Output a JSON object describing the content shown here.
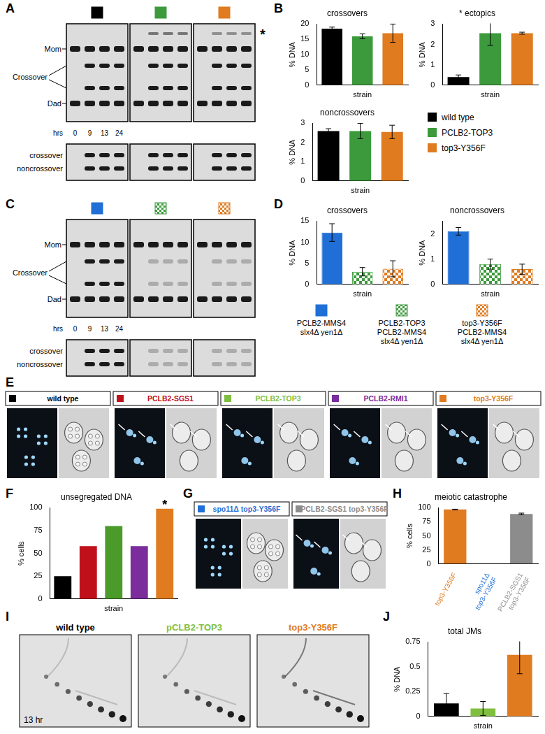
{
  "panel_letters": [
    "A",
    "B",
    "C",
    "D",
    "E",
    "F",
    "G",
    "H",
    "I",
    "J"
  ],
  "gels": {
    "A": {
      "squares": [
        "#000000",
        "#3c9a3c",
        "#e07b20"
      ],
      "labels": [
        "Mom",
        "Crossover",
        "Dad"
      ],
      "hours_label": "hrs",
      "hours": [
        0,
        9,
        13,
        24
      ],
      "lower": [
        "crossover",
        "noncrossover"
      ],
      "mark": "*"
    },
    "C": {
      "squares": [
        "#1f6fd6",
        "#3c9a3c",
        "#e07b20"
      ],
      "labels": [
        "Mom",
        "Crossover",
        "Dad"
      ],
      "hours_label": "hrs",
      "hours": [
        0,
        9,
        13,
        24
      ],
      "lower": [
        "crossover",
        "noncrossover"
      ]
    }
  },
  "legends": {
    "B": [
      {
        "name": [
          "wild type"
        ],
        "color": "#000000"
      },
      {
        "name": [
          "PCLB2-TOP3"
        ],
        "color": "#3c9a3c"
      },
      {
        "name": [
          "top3-Y356F"
        ],
        "color": "#e07b20"
      }
    ],
    "D": [
      {
        "name": [
          "PCLB2-MMS4",
          "slx4Δ yen1Δ"
        ],
        "color": "#1f6fd6"
      },
      {
        "name": [
          "PCLB2-TOP3",
          "PCLB2-MMS4",
          "slx4Δ yen1Δ"
        ],
        "color": "#3c9a3c"
      },
      {
        "name": [
          "top3-Y356F",
          "PCLB2-MMS4",
          "slx4Δ yen1Δ"
        ],
        "color": "#e07b20"
      }
    ]
  },
  "micrographs": {
    "E": [
      {
        "name": "wild type",
        "color": "#000000"
      },
      {
        "name": "PCLB2-SGS1",
        "color": "#c0111b"
      },
      {
        "name": "PCLB2-TOP3",
        "color": "#7fbf3f"
      },
      {
        "name": "PCLB2-RMI1",
        "color": "#7b2d9b"
      },
      {
        "name": "top3-Y356F",
        "color": "#e07b20"
      }
    ],
    "G": [
      {
        "name": "spo11Δ top3-Y356F",
        "color": "#1f6fd6"
      },
      {
        "name": "PCLB2-SGS1 top3-Y356F",
        "color": "#8c8c8c"
      }
    ]
  },
  "jm_gels": {
    "panels": [
      {
        "name": "wild type",
        "color": "#000000"
      },
      {
        "name": "pCLB2-TOP3",
        "color": "#7fbf3f"
      },
      {
        "name": "top3-Y356F",
        "color": "#e07b20"
      }
    ],
    "time": "13 hr"
  },
  "chart_data": [
    {
      "type": "bar",
      "title": "crossovers",
      "x_label": "strain",
      "y_label": "% DNA",
      "categories": [
        null,
        null,
        null
      ],
      "values": [
        18.5,
        16,
        17
      ],
      "errors": [
        0.5,
        0.8,
        3
      ],
      "colors": [
        "#000000",
        "#3c9a3c",
        "#e07b20"
      ],
      "ylim": [
        0,
        20
      ],
      "yticks": [
        0,
        5,
        10,
        15,
        20
      ],
      "grid": false,
      "tick_labels": "y"
    },
    {
      "type": "bar",
      "title": "* ectopics",
      "x_label": "strain",
      "y_label": "% DNA",
      "categories": [
        null,
        null,
        null
      ],
      "values": [
        0.4,
        2.55,
        2.55
      ],
      "errors": [
        0.1,
        0.6,
        0.05
      ],
      "colors": [
        "#000000",
        "#3c9a3c",
        "#e07b20"
      ],
      "ylim": [
        0,
        3
      ],
      "yticks": [
        0,
        1,
        2,
        3
      ],
      "grid": false,
      "tick_labels": "y"
    },
    {
      "type": "bar",
      "title": "noncrossovers",
      "x_label": "strain",
      "y_label": "% DNA",
      "categories": [
        null,
        null,
        null
      ],
      "values": [
        2.6,
        2.6,
        2.55
      ],
      "errors": [
        0.12,
        0.4,
        0.35
      ],
      "colors": [
        "#000000",
        "#3c9a3c",
        "#e07b20"
      ],
      "ylim": [
        0,
        3
      ],
      "yticks": [
        0,
        1,
        2,
        3
      ],
      "grid": false,
      "tick_labels": "y"
    },
    {
      "type": "bar",
      "title": "crossovers",
      "x_label": "strain",
      "y_label": "% DNA",
      "categories": [
        null,
        null,
        null
      ],
      "values": [
        12.3,
        3,
        3.7
      ],
      "errors": [
        2.1,
        1,
        1.9
      ],
      "colors": [
        "#1f6fd6",
        "#3c9a3c",
        "#e07b20"
      ],
      "ylim": [
        0,
        15
      ],
      "yticks": [
        0,
        5,
        10,
        15
      ],
      "grid": false,
      "tick_labels": "y"
    },
    {
      "type": "bar",
      "title": "noncrossovers",
      "x_label": "strain",
      "y_label": "% DNA",
      "categories": [
        null,
        null,
        null
      ],
      "values": [
        2.1,
        0.8,
        0.6
      ],
      "errors": [
        0.15,
        0.2,
        0.2
      ],
      "colors": [
        "#1f6fd6",
        "#3c9a3c",
        "#e07b20"
      ],
      "ylim": [
        0,
        2.5
      ],
      "yticks": [
        0,
        1,
        2
      ],
      "grid": false,
      "tick_labels": "y"
    },
    {
      "type": "bar",
      "title": "unsegregated DNA",
      "x_label": "strain",
      "y_label": "% cells",
      "categories": [
        null,
        null,
        null,
        null,
        null
      ],
      "values": [
        25,
        58,
        80,
        58,
        99
      ],
      "colors": [
        "#000000",
        "#c0111b",
        "#4b9b2b",
        "#7b2d9b",
        "#e07b20"
      ],
      "ylim": [
        0,
        100
      ],
      "yticks": [
        0,
        25,
        50,
        75,
        100
      ],
      "grid": false,
      "tick_labels": "y",
      "annotation": "*"
    },
    {
      "type": "bar",
      "title": "meiotic catastrophe",
      "y_label": "% cells",
      "categories": [
        "top3-Y356F",
        [
          "spo11Δ",
          "top3-Y356F"
        ],
        [
          "PCLB2-SGS1",
          "top3-Y356F"
        ]
      ],
      "values": [
        97,
        0,
        89
      ],
      "errors": [
        0.5,
        null,
        1.5
      ],
      "colors": [
        "#e07b20",
        "#1f6fd6",
        "#8c8c8c"
      ],
      "ylim": [
        0,
        100
      ],
      "yticks": [
        0,
        25,
        50,
        75,
        100
      ],
      "grid": false
    },
    {
      "type": "bar",
      "title": "total JMs",
      "x_label": "strain",
      "y_label": "% DNA",
      "categories": [
        null,
        null,
        null
      ],
      "values": [
        0.13,
        0.08,
        0.62
      ],
      "errors": [
        0.1,
        0.07,
        0.19
      ],
      "colors": [
        "#000000",
        "#7fbf3f",
        "#e07b20"
      ],
      "ylim": [
        0,
        0.75
      ],
      "yticks": [
        0,
        0.25,
        0.5,
        0.75
      ],
      "grid": false,
      "tick_labels": "y"
    }
  ]
}
